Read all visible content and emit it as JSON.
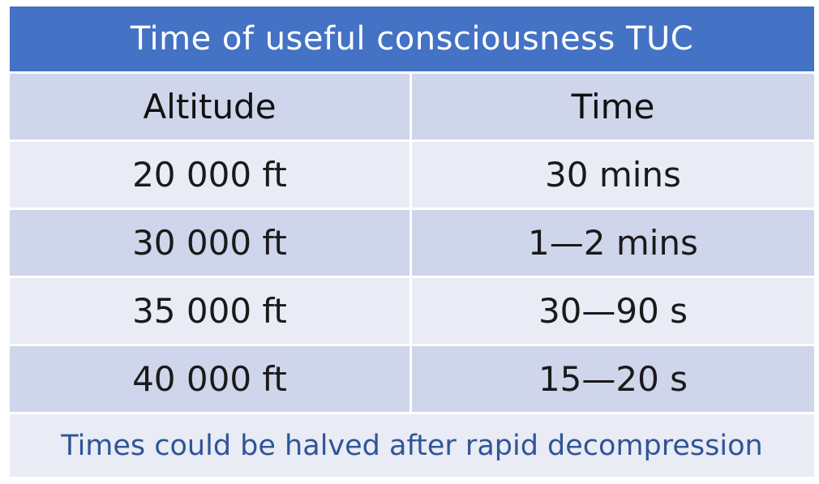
{
  "title": "Time of useful consciousness TUC",
  "table": {
    "headers": [
      "Altitude",
      "Time"
    ],
    "rows": [
      {
        "altitude": "20 000 ft",
        "time": "30 mins"
      },
      {
        "altitude": "30 000 ft",
        "time": "1—2 mins"
      },
      {
        "altitude": "35 000 ft",
        "time": "30—90 s"
      },
      {
        "altitude": "40 000 ft",
        "time": "15—20 s"
      }
    ]
  },
  "footnote": "Times could be halved after rapid decompression",
  "colors": {
    "header_bar": "#4472c4",
    "row_dark": "#cfd5ea",
    "row_light": "#e9ebf5",
    "footnote_text": "#2f5597"
  }
}
